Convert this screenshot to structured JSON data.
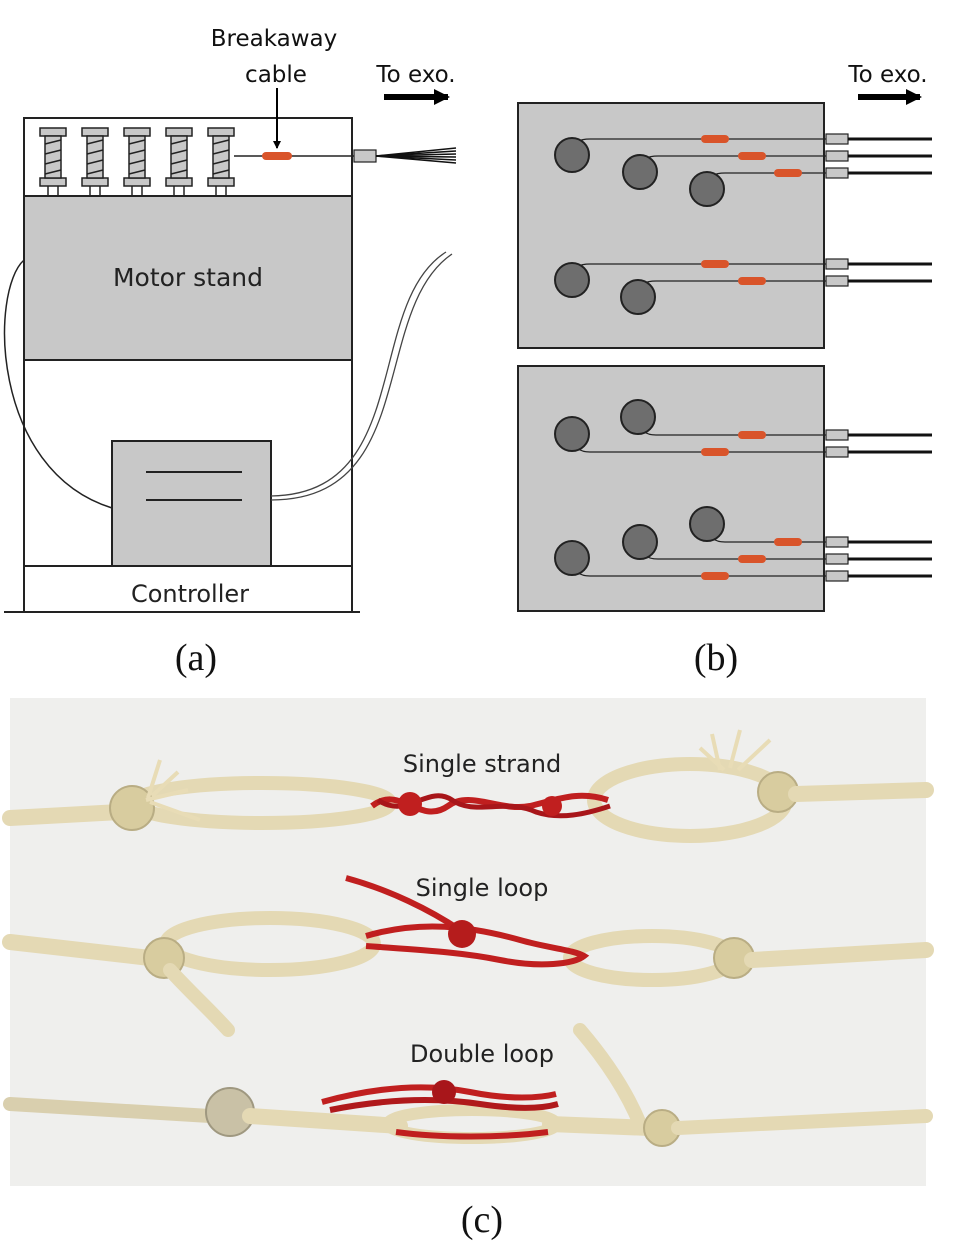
{
  "panel_a": {
    "label_breakaway_line1": "Breakaway",
    "label_breakaway_line2": "cable",
    "label_to_exo": "To exo.",
    "label_motor_stand": "Motor stand",
    "label_controller": "Controller",
    "caption": "(a)"
  },
  "panel_b": {
    "label_to_exo": "To exo.",
    "caption": "(b)"
  },
  "panel_c": {
    "label_single_strand": "Single strand",
    "label_single_loop": "Single loop",
    "label_double_loop": "Double loop",
    "caption": "(c)"
  },
  "colors": {
    "panel_fill": "#c8c8c8",
    "pulley": "#6e6e6e",
    "breakaway": "#d9542a",
    "rope": "#e9dfbd",
    "red_cord": "#c01f1f",
    "photo_bg": "#efefed"
  }
}
